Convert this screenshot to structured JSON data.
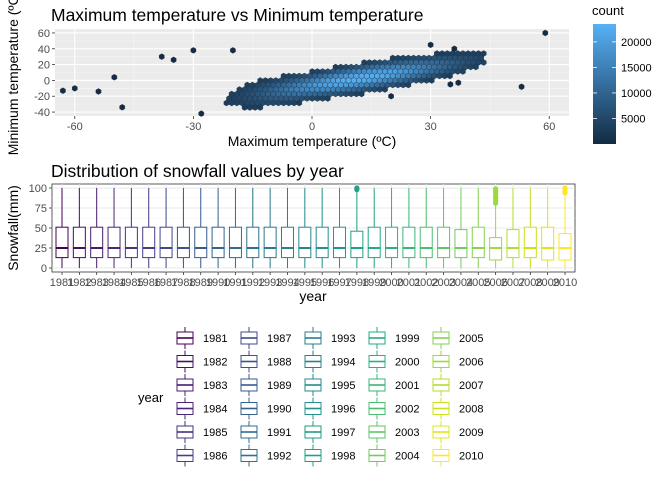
{
  "chart_data": [
    {
      "type": "heatmap",
      "subtype": "hexbin",
      "title": "Maximum temperature vs Minimum temperature",
      "xlabel": "Maximum temperature (ºC)",
      "ylabel": "Minimum temperature (ºC)",
      "xlim": [
        -65,
        65
      ],
      "ylim": [
        -45,
        65
      ],
      "xticks": [
        -60,
        -30,
        0,
        30,
        60
      ],
      "yticks": [
        -40,
        -20,
        0,
        20,
        40,
        60
      ],
      "xtick_labels": [
        "-60",
        "-30",
        "0",
        "30",
        "60"
      ],
      "ytick_labels": [
        "-40",
        "-20",
        "0",
        "20",
        "40",
        "60"
      ],
      "legend": {
        "title": "count",
        "breaks": [
          5000,
          10000,
          15000,
          20000
        ],
        "labels": [
          "5000",
          "10000",
          "15000",
          "20000"
        ],
        "range": [
          1,
          23500
        ],
        "low_color": "#132B43",
        "high_color": "#56B1F7",
        "placement": "right"
      },
      "trend": {
        "slope": 0.78,
        "intercept": -7
      },
      "points": [
        {
          "x": -60,
          "y": -10
        },
        {
          "x": -63,
          "y": -13
        },
        {
          "x": -50,
          "y": 4
        },
        {
          "x": -48,
          "y": -34
        },
        {
          "x": -38,
          "y": 30
        },
        {
          "x": -35,
          "y": 26
        },
        {
          "x": -30,
          "y": 38
        },
        {
          "x": -28,
          "y": -42
        },
        {
          "x": 30,
          "y": 45
        },
        {
          "x": 35,
          "y": -5
        },
        {
          "x": 37,
          "y": -3
        },
        {
          "x": 53,
          "y": -8
        },
        {
          "x": 59,
          "y": 60
        },
        {
          "x": 36,
          "y": 40
        },
        {
          "x": -20,
          "y": 38
        },
        {
          "x": -54,
          "y": -14
        },
        {
          "x": 20,
          "y": -20
        }
      ],
      "grid": true
    },
    {
      "type": "box",
      "title": "Distribution of snowfall values by year",
      "xlabel": "year",
      "ylabel": "Snowfall(mm)",
      "ylim": [
        0,
        100
      ],
      "yticks": [
        0,
        25,
        50,
        75,
        100
      ],
      "ytick_labels": [
        "0",
        "25",
        "50",
        "75",
        "100"
      ],
      "categories": [
        "1981",
        "1982",
        "1983",
        "1984",
        "1985",
        "1986",
        "1987",
        "1988",
        "1989",
        "1990",
        "1991",
        "1992",
        "1993",
        "1994",
        "1995",
        "1996",
        "1997",
        "1998",
        "1999",
        "2000",
        "2001",
        "2002",
        "2003",
        "2004",
        "2005",
        "2006",
        "2007",
        "2008",
        "2009",
        "2010"
      ],
      "boxes": [
        {
          "year": "1981",
          "min": 0,
          "q1": 13,
          "median": 25,
          "q3": 51,
          "max": 100
        },
        {
          "year": "1982",
          "min": 0,
          "q1": 13,
          "median": 25,
          "q3": 51,
          "max": 100
        },
        {
          "year": "1983",
          "min": 0,
          "q1": 13,
          "median": 25,
          "q3": 51,
          "max": 100
        },
        {
          "year": "1984",
          "min": 0,
          "q1": 13,
          "median": 25,
          "q3": 51,
          "max": 100
        },
        {
          "year": "1985",
          "min": 0,
          "q1": 13,
          "median": 25,
          "q3": 51,
          "max": 100
        },
        {
          "year": "1986",
          "min": 0,
          "q1": 13,
          "median": 25,
          "q3": 51,
          "max": 100
        },
        {
          "year": "1987",
          "min": 0,
          "q1": 13,
          "median": 25,
          "q3": 51,
          "max": 100
        },
        {
          "year": "1988",
          "min": 0,
          "q1": 13,
          "median": 25,
          "q3": 51,
          "max": 100
        },
        {
          "year": "1989",
          "min": 0,
          "q1": 13,
          "median": 25,
          "q3": 51,
          "max": 100
        },
        {
          "year": "1990",
          "min": 0,
          "q1": 13,
          "median": 25,
          "q3": 51,
          "max": 100
        },
        {
          "year": "1991",
          "min": 0,
          "q1": 13,
          "median": 25,
          "q3": 51,
          "max": 100
        },
        {
          "year": "1992",
          "min": 0,
          "q1": 13,
          "median": 25,
          "q3": 51,
          "max": 100
        },
        {
          "year": "1993",
          "min": 0,
          "q1": 13,
          "median": 25,
          "q3": 51,
          "max": 100
        },
        {
          "year": "1994",
          "min": 0,
          "q1": 13,
          "median": 25,
          "q3": 51,
          "max": 100
        },
        {
          "year": "1995",
          "min": 0,
          "q1": 13,
          "median": 25,
          "q3": 51,
          "max": 100
        },
        {
          "year": "1996",
          "min": 0,
          "q1": 13,
          "median": 25,
          "q3": 51,
          "max": 100
        },
        {
          "year": "1997",
          "min": 0,
          "q1": 13,
          "median": 25,
          "q3": 51,
          "max": 100
        },
        {
          "year": "1998",
          "min": 0,
          "q1": 13,
          "median": 25,
          "q3": 46,
          "max": 96,
          "outliers": [
            98,
            100
          ]
        },
        {
          "year": "1999",
          "min": 0,
          "q1": 13,
          "median": 25,
          "q3": 51,
          "max": 100
        },
        {
          "year": "2000",
          "min": 0,
          "q1": 13,
          "median": 25,
          "q3": 51,
          "max": 100
        },
        {
          "year": "2001",
          "min": 0,
          "q1": 13,
          "median": 25,
          "q3": 51,
          "max": 100
        },
        {
          "year": "2002",
          "min": 0,
          "q1": 13,
          "median": 25,
          "q3": 51,
          "max": 100
        },
        {
          "year": "2003",
          "min": 0,
          "q1": 13,
          "median": 25,
          "q3": 51,
          "max": 100
        },
        {
          "year": "2004",
          "min": 0,
          "q1": 13,
          "median": 25,
          "q3": 48,
          "max": 100
        },
        {
          "year": "2005",
          "min": 0,
          "q1": 13,
          "median": 25,
          "q3": 51,
          "max": 100
        },
        {
          "year": "2006",
          "min": 0,
          "q1": 10,
          "median": 25,
          "q3": 38,
          "max": 79,
          "outliers": [
            81,
            84,
            87,
            89,
            91,
            94,
            96,
            99
          ]
        },
        {
          "year": "2007",
          "min": 0,
          "q1": 13,
          "median": 25,
          "q3": 48,
          "max": 100
        },
        {
          "year": "2008",
          "min": 0,
          "q1": 13,
          "median": 25,
          "q3": 51,
          "max": 100
        },
        {
          "year": "2009",
          "min": 0,
          "q1": 10,
          "median": 25,
          "q3": 51,
          "max": 100
        },
        {
          "year": "2010",
          "min": 0,
          "q1": 10,
          "median": 25,
          "q3": 43,
          "max": 92,
          "outliers": [
            94,
            97,
            100
          ]
        }
      ],
      "colors": [
        "#440154",
        "#470E61",
        "#481B6D",
        "#482677",
        "#46337F",
        "#433E85",
        "#3F4889",
        "#3B528B",
        "#375B8D",
        "#33638D",
        "#2F6C8E",
        "#2C738E",
        "#297B8E",
        "#26828E",
        "#238A8D",
        "#21918C",
        "#1F998A",
        "#20A186",
        "#24A884",
        "#2DB07E",
        "#3BB679",
        "#4BBD71",
        "#5EC567",
        "#72CB5D",
        "#86D24F",
        "#9ED93A",
        "#B3DD2E",
        "#CBE11E",
        "#E2E418",
        "#FDE725"
      ],
      "legend": {
        "title": "year",
        "columns": 5,
        "rows": 6,
        "placement": "bottom"
      },
      "grid": true
    }
  ]
}
